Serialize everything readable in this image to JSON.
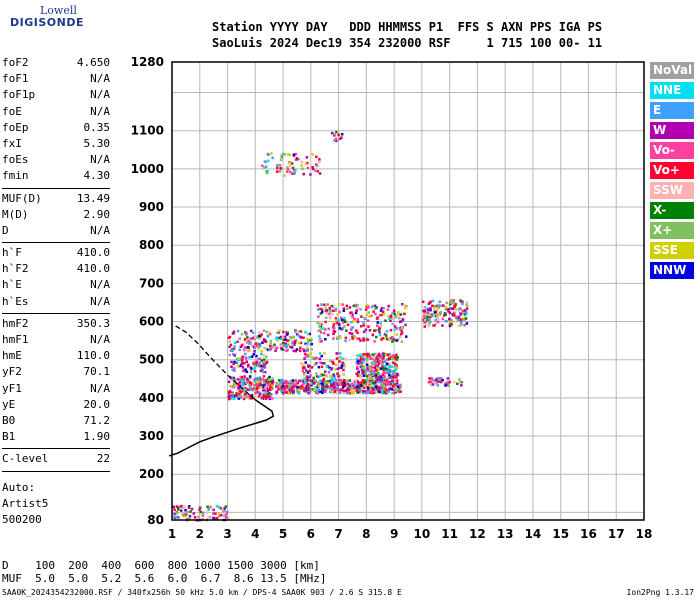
{
  "logo": {
    "line1": "Lowell",
    "line2": "DIGISONDE"
  },
  "header": {
    "line1": "Station YYYY DAY   DDD HHMMSS P1  FFS S AXN PPS IGA PS",
    "line2": "SaoLuis 2024 Dec19 354 232000 RSF     1 715 100 00- 11"
  },
  "params": {
    "group1": [
      {
        "label": "foF2",
        "value": "4.650"
      },
      {
        "label": "foF1",
        "value": "N/A"
      },
      {
        "label": "foF1p",
        "value": "N/A"
      },
      {
        "label": "foE",
        "value": "N/A"
      },
      {
        "label": "foEp",
        "value": "0.35"
      },
      {
        "label": "fxI",
        "value": "5.30"
      },
      {
        "label": "foEs",
        "value": "N/A"
      },
      {
        "label": "fmin",
        "value": "4.30"
      }
    ],
    "group2": [
      {
        "label": "MUF(D)",
        "value": "13.49"
      },
      {
        "label": "M(D)",
        "value": "2.90"
      },
      {
        "label": "D",
        "value": "N/A"
      }
    ],
    "group3": [
      {
        "label": "h`F",
        "value": "410.0"
      },
      {
        "label": "h`F2",
        "value": "410.0"
      },
      {
        "label": "h`E",
        "value": "N/A"
      },
      {
        "label": "h`Es",
        "value": "N/A"
      }
    ],
    "group4": [
      {
        "label": "hmF2",
        "value": "350.3"
      },
      {
        "label": "hmF1",
        "value": "N/A"
      },
      {
        "label": "hmE",
        "value": "110.0"
      },
      {
        "label": "yF2",
        "value": "70.1"
      },
      {
        "label": "yF1",
        "value": "N/A"
      },
      {
        "label": "yE",
        "value": "20.0"
      },
      {
        "label": "B0",
        "value": "71.2"
      },
      {
        "label": "B1",
        "value": "1.90"
      }
    ],
    "group5": [
      {
        "label": "C-level",
        "value": "22"
      }
    ]
  },
  "auto": {
    "line1": "Auto:",
    "line2": "Artist5",
    "line3": "500200"
  },
  "legend": [
    {
      "label": "NoVal",
      "color": "#a0a0a0"
    },
    {
      "label": "NNE",
      "color": "#00e0f0"
    },
    {
      "label": "E",
      "color": "#40a0ff"
    },
    {
      "label": "W",
      "color": "#b000b0"
    },
    {
      "label": "Vo-",
      "color": "#ff40a0"
    },
    {
      "label": "Vo+",
      "color": "#ff0030"
    },
    {
      "label": "SSW",
      "color": "#ffb0b0"
    },
    {
      "label": "X-",
      "color": "#008000"
    },
    {
      "label": "X+",
      "color": "#80c060"
    },
    {
      "label": "SSE",
      "color": "#d0d000"
    },
    {
      "label": "NNW",
      "color": "#0000e0"
    }
  ],
  "prop_table": {
    "line1": "D    100  200  400  600  800 1000 1500 3000 [km]",
    "line2": "MUF  5.0  5.0  5.2  5.6  6.0  6.7  8.6 13.5 [MHz]"
  },
  "footer": {
    "left": "SAA0K_2024354232000.RSF / 340fx256h 50 kHz 5.0 km / DPS-4 SAA0K 903 / 2.6 S 315.8 E",
    "right": "Ion2Png 1.3.17"
  },
  "chart_data": {
    "type": "scatter",
    "xlabel": "",
    "ylabel": "",
    "xlim": [
      1,
      18
    ],
    "ylim": [
      80,
      1280
    ],
    "x_ticks": [
      1,
      2,
      3,
      4,
      5,
      6,
      7,
      8,
      9,
      10,
      11,
      12,
      13,
      14,
      15,
      16,
      17,
      18
    ],
    "y_ticks": [
      80,
      200,
      300,
      400,
      500,
      600,
      700,
      800,
      900,
      1000,
      1100,
      1280
    ],
    "grid": true,
    "profile": {
      "solid": [
        [
          0.9,
          248
        ],
        [
          1.2,
          255
        ],
        [
          1.6,
          270
        ],
        [
          2.0,
          285
        ],
        [
          2.5,
          298
        ],
        [
          3.0,
          310
        ],
        [
          3.5,
          322
        ],
        [
          4.0,
          333
        ],
        [
          4.4,
          342
        ],
        [
          4.65,
          352
        ],
        [
          4.6,
          365
        ],
        [
          4.4,
          375
        ],
        [
          4.2,
          385
        ],
        [
          4.0,
          395
        ]
      ],
      "dashed": [
        [
          4.0,
          395
        ],
        [
          3.6,
          420
        ],
        [
          3.0,
          460
        ],
        [
          2.4,
          505
        ],
        [
          1.9,
          545
        ],
        [
          1.5,
          572
        ],
        [
          1.1,
          590
        ]
      ]
    },
    "clusters": [
      {
        "x": [
          3.0,
          4.6
        ],
        "y": [
          400,
          460
        ],
        "density": 260
      },
      {
        "x": [
          4.7,
          9.2
        ],
        "y": [
          415,
          450
        ],
        "density": 560
      },
      {
        "x": [
          7.6,
          9.1
        ],
        "y": [
          450,
          520
        ],
        "density": 260
      },
      {
        "x": [
          5.6,
          7.2
        ],
        "y": [
          440,
          520
        ],
        "density": 120
      },
      {
        "x": [
          3.0,
          6.0
        ],
        "y": [
          525,
          580
        ],
        "density": 190
      },
      {
        "x": [
          6.2,
          9.4
        ],
        "y": [
          550,
          650
        ],
        "density": 260
      },
      {
        "x": [
          10.0,
          11.6
        ],
        "y": [
          590,
          660
        ],
        "density": 160
      },
      {
        "x": [
          10.2,
          11.4
        ],
        "y": [
          435,
          455
        ],
        "density": 40
      },
      {
        "x": [
          4.2,
          6.3
        ],
        "y": [
          985,
          1045
        ],
        "density": 70
      },
      {
        "x": [
          6.6,
          7.1
        ],
        "y": [
          1075,
          1100
        ],
        "density": 12
      },
      {
        "x": [
          1.0,
          3.0
        ],
        "y": [
          82,
          120
        ],
        "density": 90
      },
      {
        "x": [
          3.0,
          4.4
        ],
        "y": [
          470,
          520
        ],
        "density": 90
      }
    ]
  }
}
